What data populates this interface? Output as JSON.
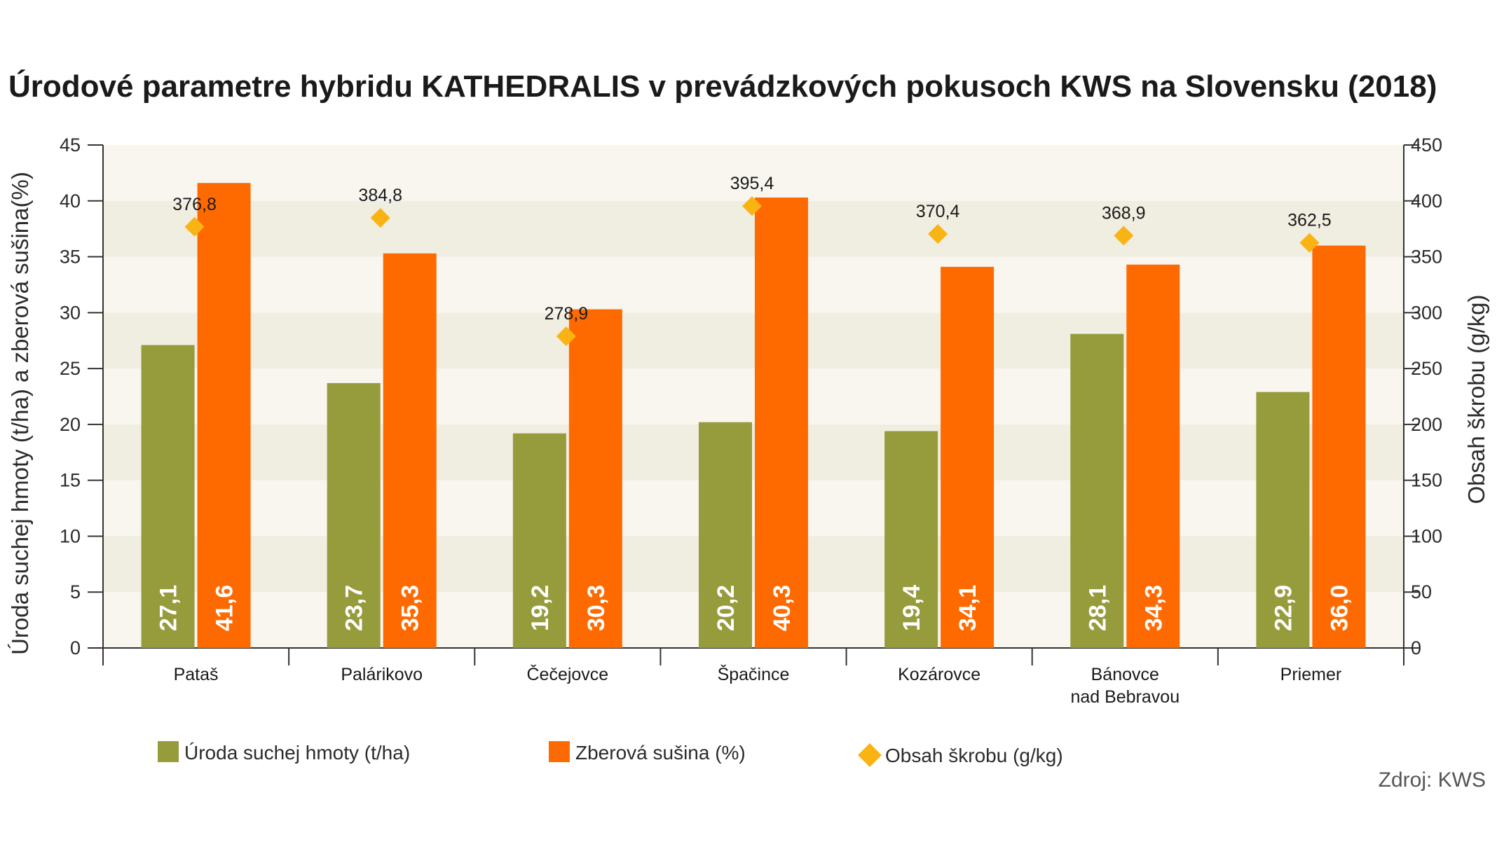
{
  "chart_data": {
    "type": "bar",
    "title": "Úrodové parametre hybridu KATHEDRALIS v prevádzkových pokusoch KWS na Slovensku (2018)",
    "ylabel": "Úroda suchej hmoty (t/ha) a zberová sušina(%)",
    "y2label": "Obsah škrobu (g/kg)",
    "ylim": [
      0,
      45
    ],
    "y2lim": [
      0,
      450
    ],
    "yticks": [
      0,
      5,
      10,
      15,
      20,
      25,
      30,
      35,
      40,
      45
    ],
    "y2ticks": [
      0,
      50,
      100,
      150,
      200,
      250,
      300,
      350,
      400,
      450
    ],
    "categories": [
      [
        "Pataš"
      ],
      [
        "Palárikovo"
      ],
      [
        "Čečejovce"
      ],
      [
        "Špačince"
      ],
      [
        "Kozárovce"
      ],
      [
        "Bánovce",
        "nad Bebravou"
      ],
      [
        "Priemer"
      ]
    ],
    "series": [
      {
        "name": "Úroda suchej hmoty (t/ha)",
        "type": "bar",
        "axis": "left",
        "color": "#969b3c",
        "values": [
          27.1,
          23.7,
          19.2,
          20.2,
          19.4,
          28.1,
          22.9
        ],
        "labels": [
          "27,1",
          "23,7",
          "19,2",
          "20,2",
          "19,4",
          "28,1",
          "22,9"
        ]
      },
      {
        "name": "Zberová sušina (%)",
        "type": "bar",
        "axis": "left",
        "color": "#ff6a00",
        "values": [
          41.6,
          35.3,
          30.3,
          40.3,
          34.1,
          34.3,
          36.0
        ],
        "labels": [
          "41,6",
          "35,3",
          "30,3",
          "40,3",
          "34,1",
          "34,3",
          "36,0"
        ]
      },
      {
        "name": "Obsah škrobu (g/kg)",
        "type": "scatter",
        "marker": "diamond",
        "axis": "right",
        "color": "#f9b414",
        "values": [
          376.8,
          384.8,
          278.9,
          395.4,
          370.4,
          368.9,
          362.5
        ],
        "labels": [
          "376,8",
          "384,8",
          "278,9",
          "395,4",
          "370,4",
          "368,9",
          "362,5"
        ]
      }
    ],
    "grid": "horizontal alternating bands",
    "legend": "bottom",
    "source": "Zdroj: KWS"
  }
}
